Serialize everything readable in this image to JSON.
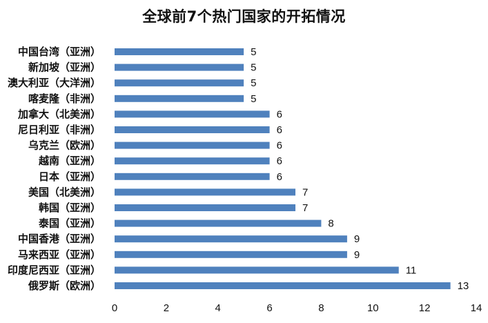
{
  "chart_data": {
    "type": "bar",
    "orientation": "horizontal",
    "title": "全球前7个热门国家的开拓情况",
    "categories": [
      "中国台湾（亚洲）",
      "新加坡（亚洲）",
      "澳大利亚（大洋洲）",
      "喀麦隆（非洲）",
      "加拿大（北美洲）",
      "尼日利亚（非洲）",
      "乌克兰（欧洲）",
      "越南（亚洲）",
      "日本（亚洲）",
      "美国（北美洲）",
      "韩国（亚洲）",
      "泰国（亚洲）",
      "中国香港（亚洲）",
      "马来西亚（亚洲）",
      "印度尼西亚（亚洲）",
      "俄罗斯（欧洲）"
    ],
    "values": [
      5,
      5,
      5,
      5,
      6,
      6,
      6,
      6,
      6,
      7,
      7,
      8,
      9,
      9,
      11,
      13
    ],
    "xlim": [
      0,
      14
    ],
    "xticks": [
      0,
      2,
      4,
      6,
      8,
      10,
      12,
      14
    ],
    "bar_color": "#4F81BD",
    "grid": false,
    "legend": "none",
    "data_labels": true
  }
}
